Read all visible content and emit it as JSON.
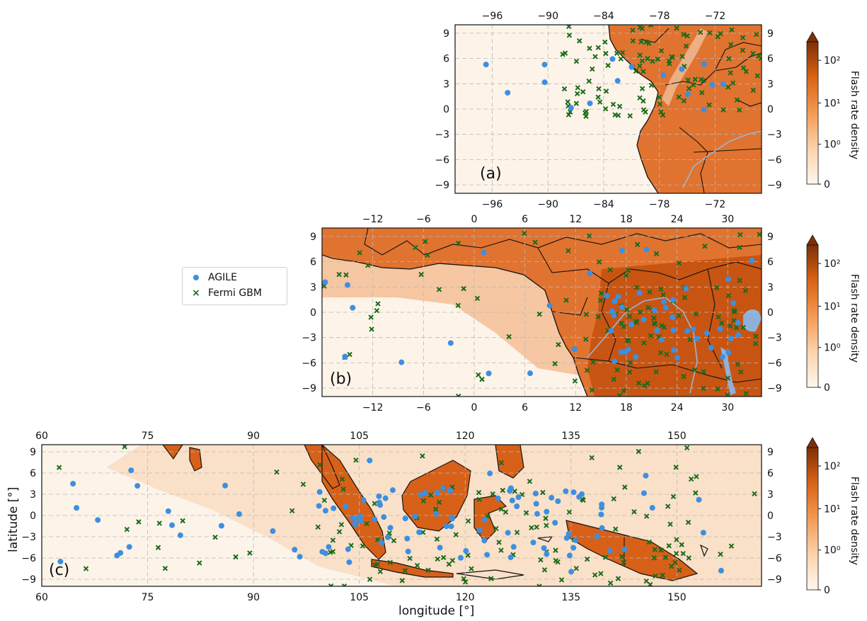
{
  "colors": {
    "ocean_low": "#fdf1e6",
    "land_mid": "#e0712b",
    "land_high": "#c2520f",
    "agile": "#3d8fe0",
    "fermi": "#1a6b1a",
    "river": "#9bb6d4",
    "lake": "#8fb0db"
  },
  "legend": {
    "agile": "AGILE",
    "fermi": "Fermi GBM"
  },
  "axis_labels": {
    "latitude": "latitude [°]",
    "longitude": "longitude [°]"
  },
  "colorbar": {
    "title": "Flash rate density",
    "ticks": [
      "10²",
      "10¹",
      "10⁰",
      "0"
    ]
  },
  "panels": [
    {
      "id": "a",
      "label": "(a)",
      "lon_range": [
        -100,
        -67
      ],
      "lat_range": [
        -10,
        10
      ],
      "lon_ticks": [
        "−96",
        "−90",
        "−84",
        "−78",
        "−72"
      ],
      "lon_tick_values": [
        -96,
        -90,
        -84,
        -78,
        -72
      ],
      "lat_ticks": [
        "−9",
        "−6",
        "−3",
        "0",
        "3",
        "6",
        "9"
      ],
      "lat_tick_values": [
        -9,
        -6,
        -3,
        0,
        3,
        6,
        9
      ]
    },
    {
      "id": "b",
      "label": "(b)",
      "lon_range": [
        -18,
        34
      ],
      "lat_range": [
        -10,
        10
      ],
      "lon_ticks": [
        "−12",
        "−6",
        "0",
        "6",
        "12",
        "18",
        "24",
        "30"
      ],
      "lon_tick_values": [
        -12,
        -6,
        0,
        6,
        12,
        18,
        24,
        30
      ],
      "lat_ticks": [
        "−9",
        "−6",
        "−3",
        "0",
        "3",
        "6",
        "9"
      ],
      "lat_tick_values": [
        -9,
        -6,
        -3,
        0,
        3,
        6,
        9
      ]
    },
    {
      "id": "c",
      "label": "(c)",
      "lon_range": [
        60,
        162
      ],
      "lat_range": [
        -10,
        10
      ],
      "lon_ticks": [
        "60",
        "75",
        "90",
        "105",
        "120",
        "135",
        "150"
      ],
      "lon_tick_values": [
        60,
        75,
        90,
        105,
        120,
        135,
        150
      ],
      "lat_ticks": [
        "−9",
        "−6",
        "−3",
        "0",
        "3",
        "6",
        "9"
      ],
      "lat_tick_values": [
        -9,
        -6,
        -3,
        0,
        3,
        6,
        9
      ]
    }
  ]
}
